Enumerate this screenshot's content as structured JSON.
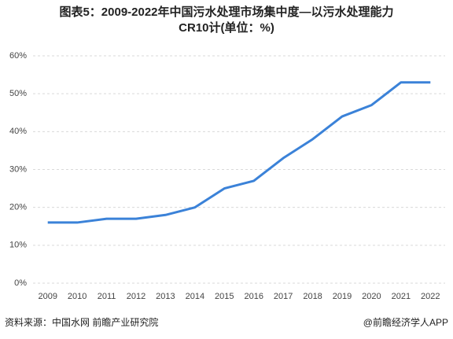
{
  "chart_data": {
    "type": "line",
    "title": "图表5：2009-2022年中国污水处理市场集中度—以污水处理能力CR10计(单位：%)",
    "categories": [
      "2009",
      "2010",
      "2011",
      "2012",
      "2013",
      "2014",
      "2015",
      "2016",
      "2017",
      "2018",
      "2019",
      "2020",
      "2021",
      "2022"
    ],
    "series": [
      {
        "color": "#3b82d8",
        "values": [
          16,
          16,
          17,
          17,
          18,
          20,
          25,
          27,
          33,
          38,
          44,
          47,
          53,
          53
        ]
      }
    ],
    "ylim": [
      0,
      60
    ],
    "yticks": [
      {
        "value": 0,
        "label": "0%"
      },
      {
        "value": 10,
        "label": "10%"
      },
      {
        "value": 20,
        "label": "20%"
      },
      {
        "value": 30,
        "label": "30%"
      },
      {
        "value": 40,
        "label": "40%"
      },
      {
        "value": 50,
        "label": "50%"
      },
      {
        "value": 60,
        "label": "60%"
      }
    ],
    "grid": true,
    "source": "资料来源：中国水网 前瞻产业研究院",
    "credit": "@前瞻经济学人APP"
  }
}
